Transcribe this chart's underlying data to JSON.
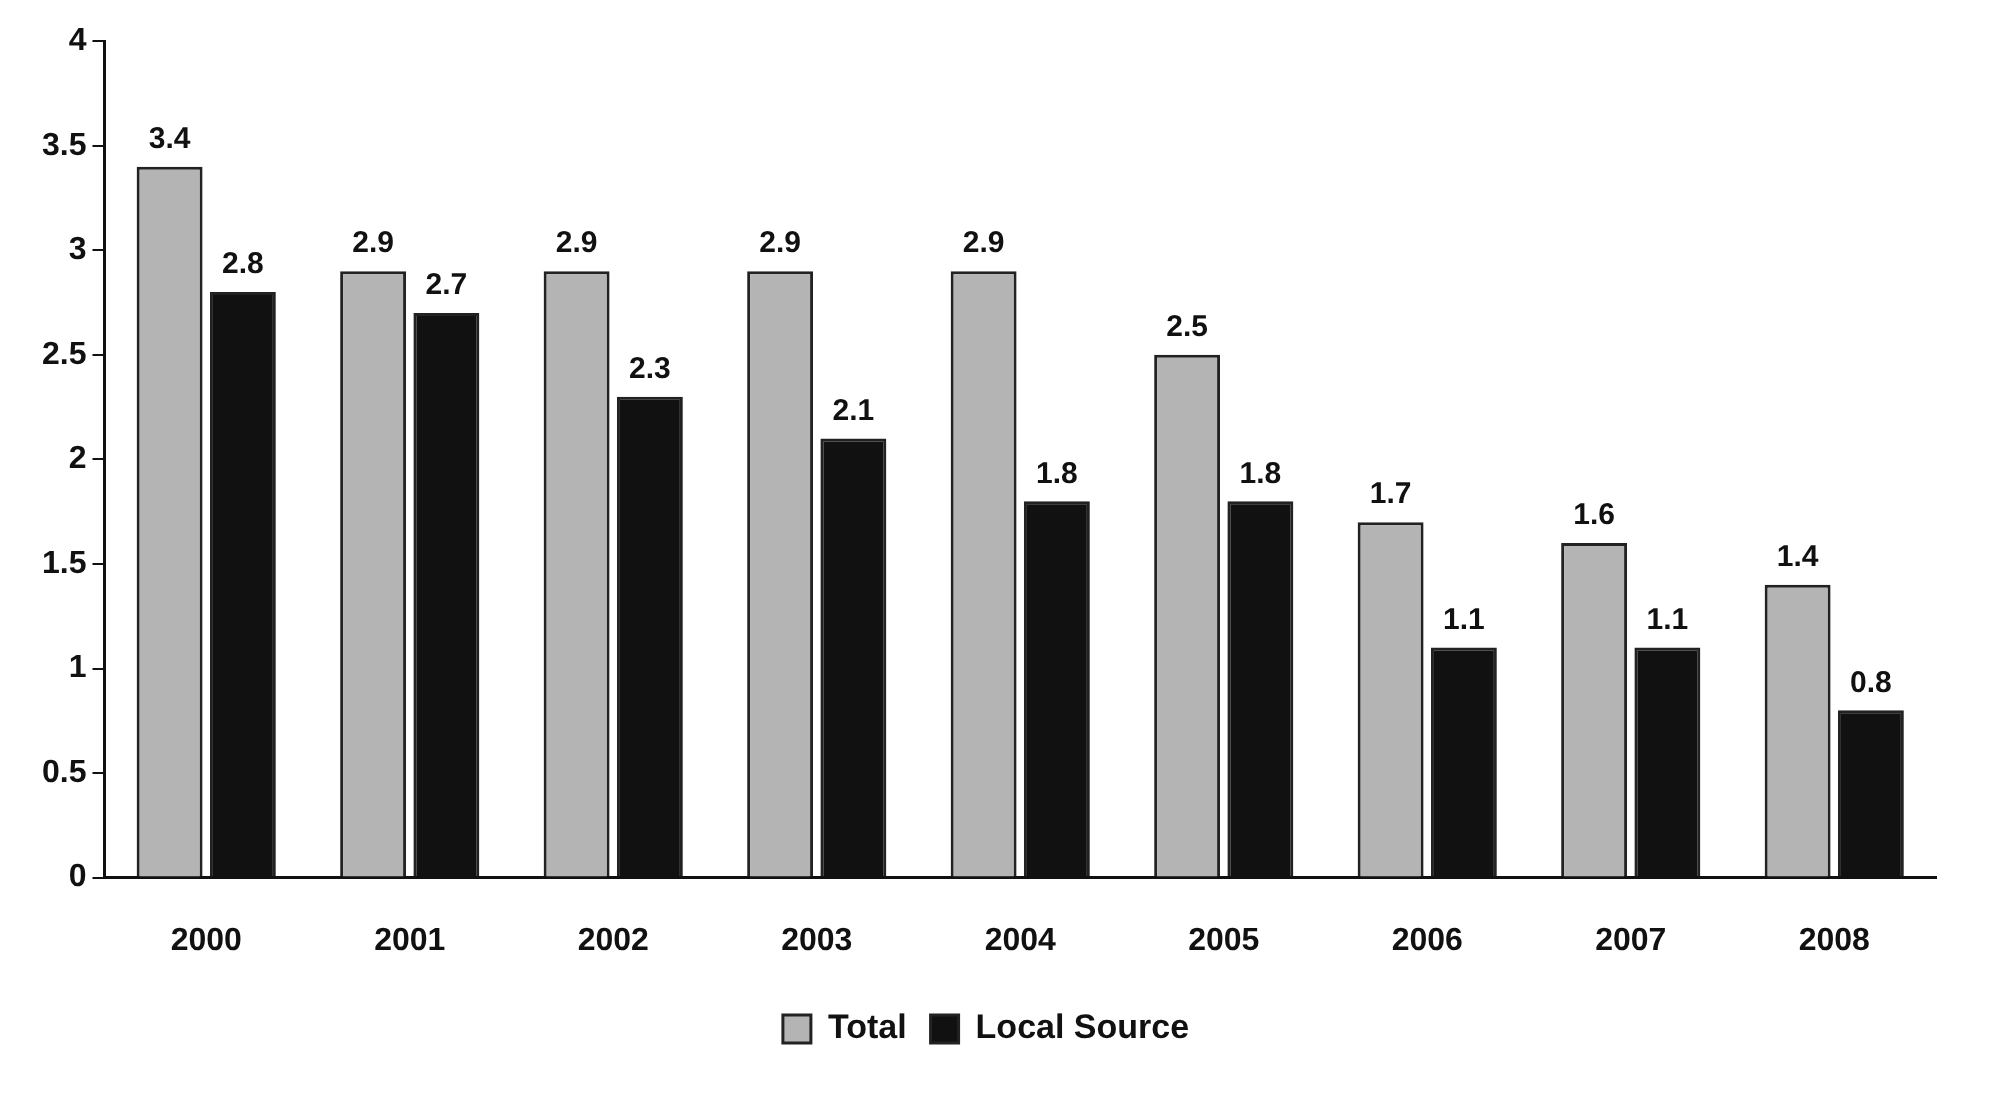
{
  "chart_data": {
    "type": "bar",
    "categories": [
      "2000",
      "2001",
      "2002",
      "2003",
      "2004",
      "2005",
      "2006",
      "2007",
      "2008"
    ],
    "series": [
      {
        "name": "Total",
        "color": "#b4b4b4",
        "values": [
          3.4,
          2.9,
          2.9,
          2.9,
          2.9,
          2.5,
          1.7,
          1.6,
          1.4
        ]
      },
      {
        "name": "Local Source",
        "color": "#111111",
        "values": [
          2.8,
          2.7,
          2.3,
          2.1,
          1.8,
          1.8,
          1.1,
          1.1,
          0.8
        ]
      }
    ],
    "ylim": [
      0,
      4
    ],
    "yticks": [
      0,
      0.5,
      1,
      1.5,
      2,
      2.5,
      3,
      3.5,
      4
    ],
    "grid": false,
    "legend": "bottom",
    "data_labels": true
  }
}
